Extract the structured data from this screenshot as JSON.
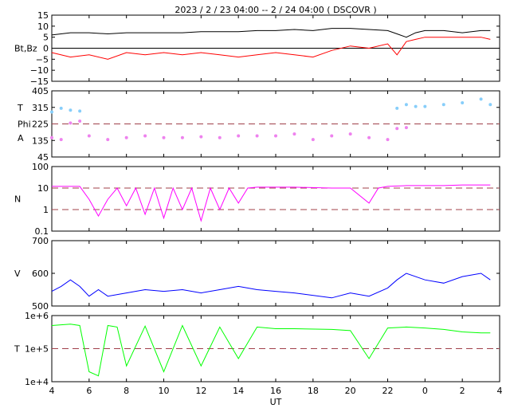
{
  "title": "2023 /  2 / 23   04:00 --  2 / 24   04:00 ( DSCOVR )",
  "xlabel": "UT",
  "x_ticks": [
    "4",
    "6",
    "8",
    "10",
    "12",
    "14",
    "16",
    "18",
    "20",
    "22",
    "0",
    "2",
    "4"
  ],
  "colors": {
    "bt": "#000000",
    "bz": "#ff0000",
    "temp_phi": "#87cefa",
    "angle_a": "#ee82ee",
    "density": "#ff00ff",
    "speed": "#0000ff",
    "temperature": "#00ff00",
    "reference": "#a0404a"
  },
  "chart_data": [
    {
      "type": "line",
      "panel": "bfield",
      "ylabel": "Bt,Bz",
      "ylim": [
        -15,
        15
      ],
      "y_ticks": [
        "15",
        "10",
        "5",
        "0",
        "−5",
        "−10",
        "−15"
      ],
      "reference_lines": [
        0
      ],
      "x": [
        4,
        5,
        6,
        7,
        8,
        9,
        10,
        11,
        12,
        13,
        14,
        15,
        16,
        17,
        18,
        19,
        20,
        21,
        22,
        22.5,
        23,
        23.5,
        24,
        25,
        26,
        27,
        27.5
      ],
      "series": [
        {
          "name": "Bt",
          "values": [
            6,
            7,
            7,
            6.5,
            7,
            7,
            7,
            7,
            7.5,
            7.5,
            7.5,
            8,
            8,
            8.5,
            8,
            9,
            9,
            8.5,
            8,
            6.5,
            5,
            7,
            8,
            8,
            7,
            8,
            8
          ]
        },
        {
          "name": "Bz",
          "values": [
            -2,
            -4,
            -3,
            -5,
            -2,
            -3,
            -2,
            -3,
            -2,
            -3,
            -4,
            -3,
            -2,
            -3,
            -4,
            -1,
            1,
            0,
            2,
            -3,
            3,
            4,
            5,
            5,
            5,
            5,
            4
          ]
        }
      ]
    },
    {
      "type": "scatter",
      "panel": "temperature-angle",
      "ylabels": [
        "T",
        "Phi",
        "A"
      ],
      "ylim": [
        45,
        405
      ],
      "y_ticks": [
        "405",
        "315",
        "225",
        "135",
        "45"
      ],
      "reference_lines": [
        225
      ],
      "x": [
        4,
        4.5,
        5,
        5.5,
        6,
        7,
        8,
        9,
        10,
        11,
        12,
        13,
        14,
        15,
        16,
        17,
        18,
        19,
        20,
        21,
        22,
        22.5,
        23,
        23.5,
        24,
        25,
        26,
        27,
        27.5
      ],
      "series": [
        {
          "name": "T",
          "values": [
            290,
            310,
            300,
            295,
            null,
            null,
            null,
            null,
            null,
            null,
            null,
            null,
            null,
            null,
            null,
            null,
            null,
            null,
            null,
            null,
            null,
            310,
            330,
            320,
            320,
            330,
            340,
            360,
            330
          ]
        },
        {
          "name": "A",
          "values": [
            150,
            140,
            230,
            240,
            160,
            140,
            150,
            160,
            150,
            150,
            155,
            150,
            160,
            160,
            160,
            170,
            140,
            160,
            170,
            150,
            140,
            200,
            205,
            null,
            null,
            null,
            null,
            null,
            null
          ]
        }
      ]
    },
    {
      "type": "line",
      "panel": "density",
      "ylabel": "N",
      "ylim": [
        0.1,
        100
      ],
      "y_ticks": [
        "100",
        "10",
        "1",
        "0.1"
      ],
      "log_scale": true,
      "reference_lines": [
        10,
        1
      ],
      "x": [
        4,
        5,
        5.5,
        6,
        6.5,
        7,
        7.5,
        8,
        8.5,
        9,
        9.5,
        10,
        10.5,
        11,
        11.5,
        12,
        12.5,
        13,
        13.5,
        14,
        14.5,
        15,
        16,
        17,
        19,
        20,
        21,
        21.5,
        22,
        23,
        24,
        25,
        26,
        27,
        27.5
      ],
      "values": [
        12,
        12,
        12,
        3,
        0.5,
        3,
        10,
        1.5,
        10,
        0.6,
        10,
        0.4,
        10,
        1,
        10,
        0.3,
        10,
        1,
        10,
        2,
        10,
        11,
        11,
        11,
        10,
        10,
        2,
        10,
        12,
        13,
        13,
        13,
        14,
        14,
        14
      ]
    },
    {
      "type": "line",
      "panel": "speed",
      "ylabel": "V",
      "ylim": [
        500,
        700
      ],
      "y_ticks": [
        "700",
        "600",
        "500"
      ],
      "x": [
        4,
        4.5,
        5,
        5.5,
        6,
        6.5,
        7,
        8,
        9,
        10,
        11,
        12,
        13,
        14,
        15,
        16,
        17,
        19,
        20,
        21,
        22,
        22.5,
        23,
        24,
        25,
        26,
        27,
        27.5
      ],
      "values": [
        545,
        560,
        580,
        560,
        530,
        550,
        530,
        540,
        550,
        545,
        550,
        540,
        550,
        560,
        550,
        545,
        540,
        525,
        540,
        530,
        555,
        580,
        600,
        580,
        570,
        590,
        600,
        580
      ]
    },
    {
      "type": "line",
      "panel": "temperature",
      "ylabel": "T",
      "ylim": [
        10000,
        1000000
      ],
      "y_ticks": [
        "1e+6",
        "1e+5",
        "1e+4"
      ],
      "log_scale": true,
      "reference_lines": [
        100000
      ],
      "x": [
        4,
        5,
        5.5,
        6,
        6.5,
        7,
        7.5,
        8,
        9,
        10,
        11,
        12,
        13,
        14,
        15,
        16,
        17,
        19,
        20,
        21,
        22,
        23,
        24,
        25,
        26,
        27,
        27.5
      ],
      "values": [
        500000,
        550000,
        500000,
        20000,
        15000,
        500000,
        450000,
        30000,
        480000,
        20000,
        500000,
        30000,
        450000,
        50000,
        450000,
        400000,
        400000,
        380000,
        350000,
        50000,
        420000,
        450000,
        420000,
        380000,
        320000,
        300000,
        300000
      ]
    }
  ]
}
